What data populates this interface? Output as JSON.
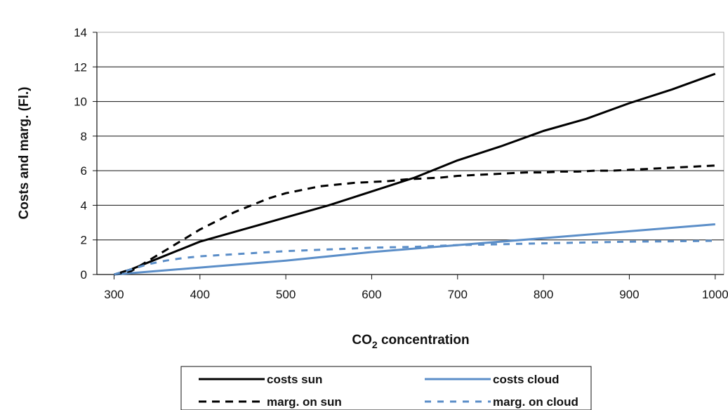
{
  "chart_data": {
    "type": "line",
    "xlabel": {
      "main": "CO",
      "sub": "2",
      "rest": " concentration"
    },
    "ylabel": "Costs and marg. (Fl.)",
    "xlim": [
      280,
      1010
    ],
    "ylim": [
      0,
      14
    ],
    "xticks": [
      300,
      400,
      500,
      600,
      700,
      800,
      900,
      1000
    ],
    "yticks": [
      0,
      2,
      4,
      6,
      8,
      10,
      12,
      14
    ],
    "grid": {
      "horizontal": true,
      "vertical": false
    },
    "legend_position": "bottom",
    "series": [
      {
        "name": "costs sun",
        "color": "#000000",
        "dash": "solid",
        "x": [
          300,
          320,
          350,
          400,
          450,
          500,
          550,
          600,
          650,
          700,
          750,
          800,
          850,
          900,
          950,
          1000
        ],
        "y": [
          0,
          0.3,
          0.9,
          1.9,
          2.6,
          3.3,
          4.0,
          4.8,
          5.6,
          6.6,
          7.4,
          8.3,
          9.0,
          9.9,
          10.7,
          11.6
        ]
      },
      {
        "name": "costs cloud",
        "color": "#5b8ec8",
        "dash": "solid",
        "x": [
          300,
          400,
          500,
          600,
          700,
          800,
          900,
          1000
        ],
        "y": [
          0,
          0.4,
          0.8,
          1.3,
          1.7,
          2.1,
          2.5,
          2.9
        ]
      },
      {
        "name": "marg. on sun",
        "color": "#000000",
        "dash": "dashed",
        "x": [
          300,
          320,
          340,
          360,
          380,
          400,
          420,
          440,
          460,
          480,
          500,
          520,
          540,
          560,
          580,
          600,
          620,
          640,
          660,
          680,
          700,
          720,
          740,
          760,
          780,
          800,
          820,
          840,
          860,
          880,
          900,
          920,
          940,
          960,
          980,
          1000
        ],
        "y": [
          0,
          0.2,
          0.8,
          1.4,
          2.0,
          2.6,
          3.1,
          3.6,
          4.0,
          4.4,
          4.7,
          4.9,
          5.1,
          5.2,
          5.3,
          5.35,
          5.4,
          5.5,
          5.55,
          5.6,
          5.7,
          5.75,
          5.8,
          5.85,
          5.9,
          5.9,
          5.95,
          5.95,
          6.0,
          6.0,
          6.05,
          6.1,
          6.15,
          6.2,
          6.25,
          6.3
        ]
      },
      {
        "name": "marg. on cloud",
        "color": "#5b8ec8",
        "dash": "dashed",
        "x": [
          300,
          320,
          340,
          360,
          380,
          400,
          450,
          500,
          550,
          600,
          650,
          700,
          750,
          800,
          850,
          900,
          950,
          1000
        ],
        "y": [
          0,
          0.3,
          0.6,
          0.8,
          0.95,
          1.05,
          1.2,
          1.35,
          1.45,
          1.55,
          1.6,
          1.7,
          1.75,
          1.8,
          1.85,
          1.9,
          1.92,
          1.95
        ]
      }
    ]
  }
}
